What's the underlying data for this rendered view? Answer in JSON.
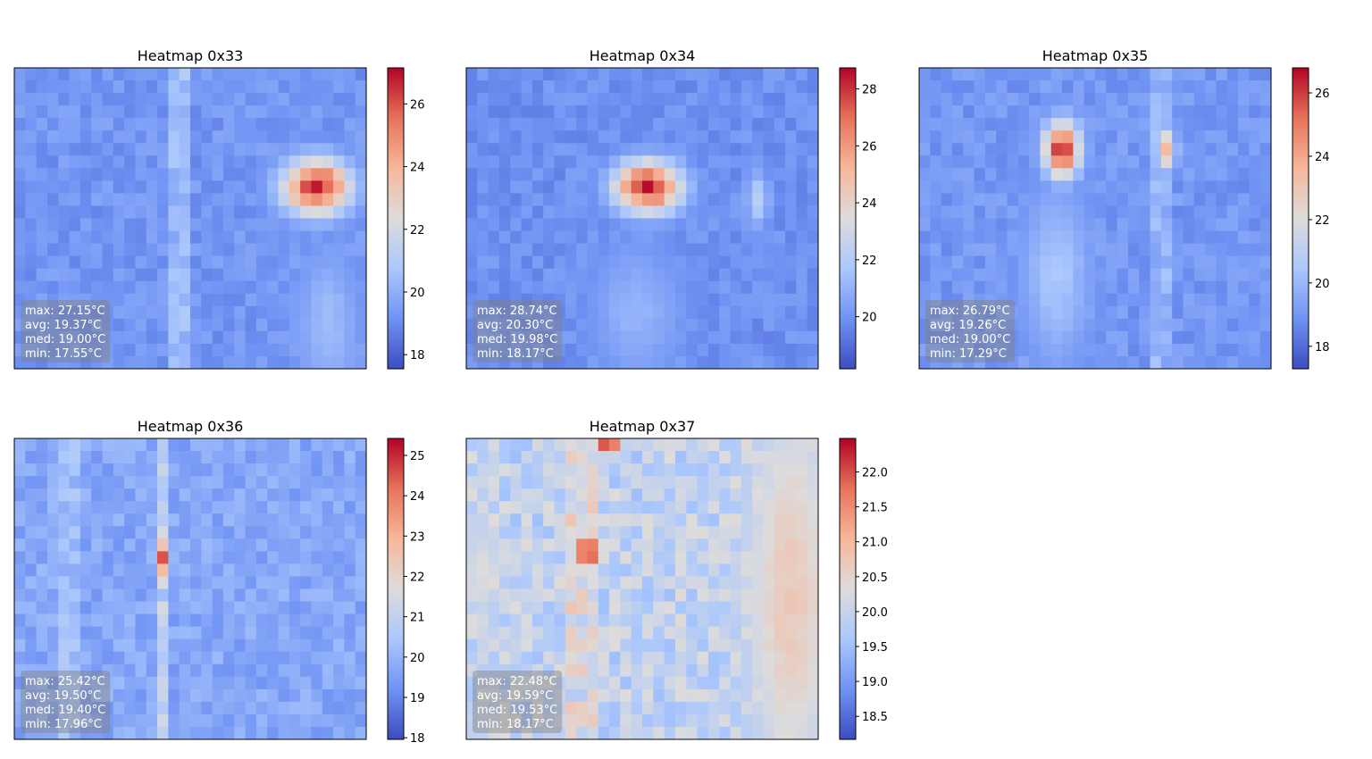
{
  "figure": {
    "background": "#ffffff",
    "colormap": "coolwarm",
    "colormap_stops": [
      "#3b4cc0",
      "#6f92f3",
      "#aac7fd",
      "#dddcdc",
      "#f7b89c",
      "#e7745b",
      "#b40426"
    ]
  },
  "chart_data": [
    {
      "type": "heatmap",
      "title": "Heatmap 0x33",
      "grid": false,
      "grid_size": [
        32,
        24
      ],
      "value_range": [
        17.55,
        27.15
      ],
      "colorbar_ticks": [
        "18",
        "20",
        "22",
        "24",
        "26"
      ],
      "colorbar_tick_values": [
        18,
        20,
        22,
        24,
        26
      ],
      "stats": [
        "max: 27.15°C",
        "avg: 19.37°C",
        "med: 19.00°C",
        "min: 17.55°C"
      ],
      "hotspots": [
        {
          "col": 27,
          "row": 9,
          "peak": 27.15,
          "sx": 2.2,
          "sy": 1.6
        },
        {
          "col": 28,
          "row": 20,
          "peak": 20.6,
          "sx": 2.0,
          "sy": 4.0
        }
      ],
      "bands": [
        {
          "col": 14.5,
          "width": 2.0,
          "delta": 1.2
        }
      ]
    },
    {
      "type": "heatmap",
      "title": "Heatmap 0x34",
      "grid": false,
      "grid_size": [
        32,
        24
      ],
      "value_range": [
        18.17,
        28.74
      ],
      "colorbar_ticks": [
        "20",
        "22",
        "24",
        "26",
        "28"
      ],
      "colorbar_tick_values": [
        20,
        22,
        24,
        26,
        28
      ],
      "stats": [
        "max: 28.74°C",
        "avg: 20.30°C",
        "med: 19.98°C",
        "min: 18.17°C"
      ],
      "hotspots": [
        {
          "col": 16,
          "row": 9,
          "peak": 28.74,
          "sx": 2.2,
          "sy": 1.5
        },
        {
          "col": 15,
          "row": 19,
          "peak": 21.2,
          "sx": 3.0,
          "sy": 4.0
        },
        {
          "col": 26,
          "row": 10,
          "peak": 22.5,
          "sx": 0.8,
          "sy": 1.5
        }
      ],
      "bands": []
    },
    {
      "type": "heatmap",
      "title": "Heatmap 0x35",
      "grid": false,
      "grid_size": [
        32,
        24
      ],
      "value_range": [
        17.29,
        26.79
      ],
      "colorbar_ticks": [
        "18",
        "20",
        "22",
        "24",
        "26"
      ],
      "colorbar_tick_values": [
        18,
        20,
        22,
        24,
        26
      ],
      "stats": [
        "max: 26.79°C",
        "avg: 19.26°C",
        "med: 19.00°C",
        "min: 17.29°C"
      ],
      "hotspots": [
        {
          "col": 12.5,
          "row": 6,
          "peak": 26.79,
          "sx": 1.2,
          "sy": 1.6
        },
        {
          "col": 22,
          "row": 6,
          "peak": 24.0,
          "sx": 0.6,
          "sy": 1.2
        },
        {
          "col": 12,
          "row": 16,
          "peak": 20.6,
          "sx": 2.2,
          "sy": 5.0
        }
      ],
      "bands": [
        {
          "col": 21.5,
          "width": 1.0,
          "delta": 0.9
        }
      ]
    },
    {
      "type": "heatmap",
      "title": "Heatmap 0x36",
      "grid": false,
      "grid_size": [
        32,
        24
      ],
      "value_range": [
        17.96,
        25.42
      ],
      "colorbar_ticks": [
        "18",
        "19",
        "20",
        "21",
        "22",
        "23",
        "24",
        "25"
      ],
      "colorbar_tick_values": [
        18,
        19,
        20,
        21,
        22,
        23,
        24,
        25
      ],
      "stats": [
        "max: 25.42°C",
        "avg: 19.50°C",
        "med: 19.40°C",
        "min: 17.96°C"
      ],
      "hotspots": [
        {
          "col": 13,
          "row": 9,
          "peak": 25.42,
          "sx": 0.5,
          "sy": 1.0
        }
      ],
      "bands": [
        {
          "col": 13,
          "width": 1.0,
          "delta": 1.3
        },
        {
          "col": 4.5,
          "width": 2.0,
          "delta": 0.6
        }
      ]
    },
    {
      "type": "heatmap",
      "title": "Heatmap 0x37",
      "grid": false,
      "grid_size": [
        32,
        24
      ],
      "value_range": [
        18.17,
        22.48
      ],
      "colorbar_ticks": [
        "18.5",
        "19.0",
        "19.5",
        "20.0",
        "20.5",
        "21.0",
        "21.5",
        "22.0"
      ],
      "colorbar_tick_values": [
        18.5,
        19.0,
        19.5,
        20.0,
        20.5,
        21.0,
        21.5,
        22.0
      ],
      "stats": [
        "max: 22.48°C",
        "avg: 19.59°C",
        "med: 19.53°C",
        "min: 18.17°C"
      ],
      "hotspots": [
        {
          "col": 10.5,
          "row": 8.5,
          "peak": 22.48,
          "sx": 1.0,
          "sy": 1.0
        },
        {
          "col": 12.5,
          "row": 0,
          "peak": 22.48,
          "sx": 0.8,
          "sy": 0.6
        },
        {
          "col": 29,
          "row": 12,
          "peak": 20.8,
          "sx": 3.0,
          "sy": 12.0
        },
        {
          "col": 1,
          "row": 10,
          "peak": 20.4,
          "sx": 1.5,
          "sy": 3.0
        }
      ],
      "bands": [
        {
          "col": 10,
          "width": 2.0,
          "delta": 0.4
        }
      ]
    }
  ]
}
